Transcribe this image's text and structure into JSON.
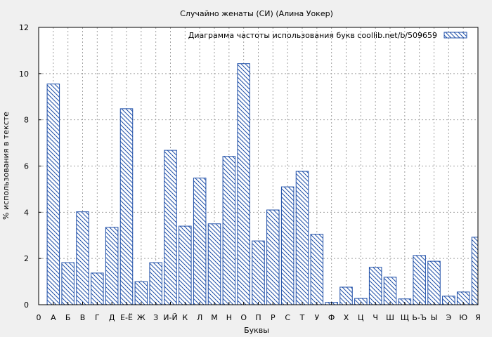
{
  "chart_data": {
    "type": "bar",
    "title": "Случайно женаты (СИ) (Алина Уокер)",
    "xlabel": "Буквы",
    "ylabel": "% использования в тексте",
    "legend": {
      "label": "Диаграмма частоты использования букв  coollib.net/b/509659",
      "position": "top-right"
    },
    "ylim": [
      0,
      12
    ],
    "yticks": [
      0,
      2,
      4,
      6,
      8,
      10,
      12
    ],
    "grid": true,
    "x_labels": [
      "0",
      "А",
      "Б",
      "В",
      "Г",
      "Д",
      "Е-Ё",
      "Ж",
      "З",
      "И-Й",
      "К",
      "Л",
      "М",
      "Н",
      "О",
      "П",
      "Р",
      "С",
      "Т",
      "У",
      "Ф",
      "Х",
      "Ц",
      "Ч",
      "Ш",
      "Щ",
      "Ь-Ъ",
      "Ы",
      "Э",
      "Ю",
      "Я"
    ],
    "categories": [
      "А",
      "Б",
      "В",
      "Г",
      "Д",
      "Е-Ё",
      "Ж",
      "З",
      "И-Й",
      "К",
      "Л",
      "М",
      "Н",
      "О",
      "П",
      "Р",
      "С",
      "Т",
      "У",
      "Ф",
      "Х",
      "Ц",
      "Ч",
      "Ш",
      "Щ",
      "Ь-Ъ",
      "Ы",
      "Э",
      "Ю",
      "Я"
    ],
    "values": [
      9.55,
      1.82,
      4.02,
      1.37,
      3.35,
      8.48,
      1.0,
      1.82,
      6.68,
      3.4,
      5.48,
      3.5,
      6.42,
      10.43,
      2.76,
      4.1,
      5.1,
      5.77,
      3.05,
      0.1,
      0.76,
      0.27,
      1.62,
      1.19,
      0.25,
      2.13,
      1.88,
      0.37,
      0.55,
      2.92
    ]
  },
  "colors": {
    "bar_stroke": "#1f4fa8",
    "hatch": "#1f4fa8",
    "grid": "#a0a0a0",
    "background": "#f0f0f0",
    "plot_bg": "#ffffff"
  }
}
